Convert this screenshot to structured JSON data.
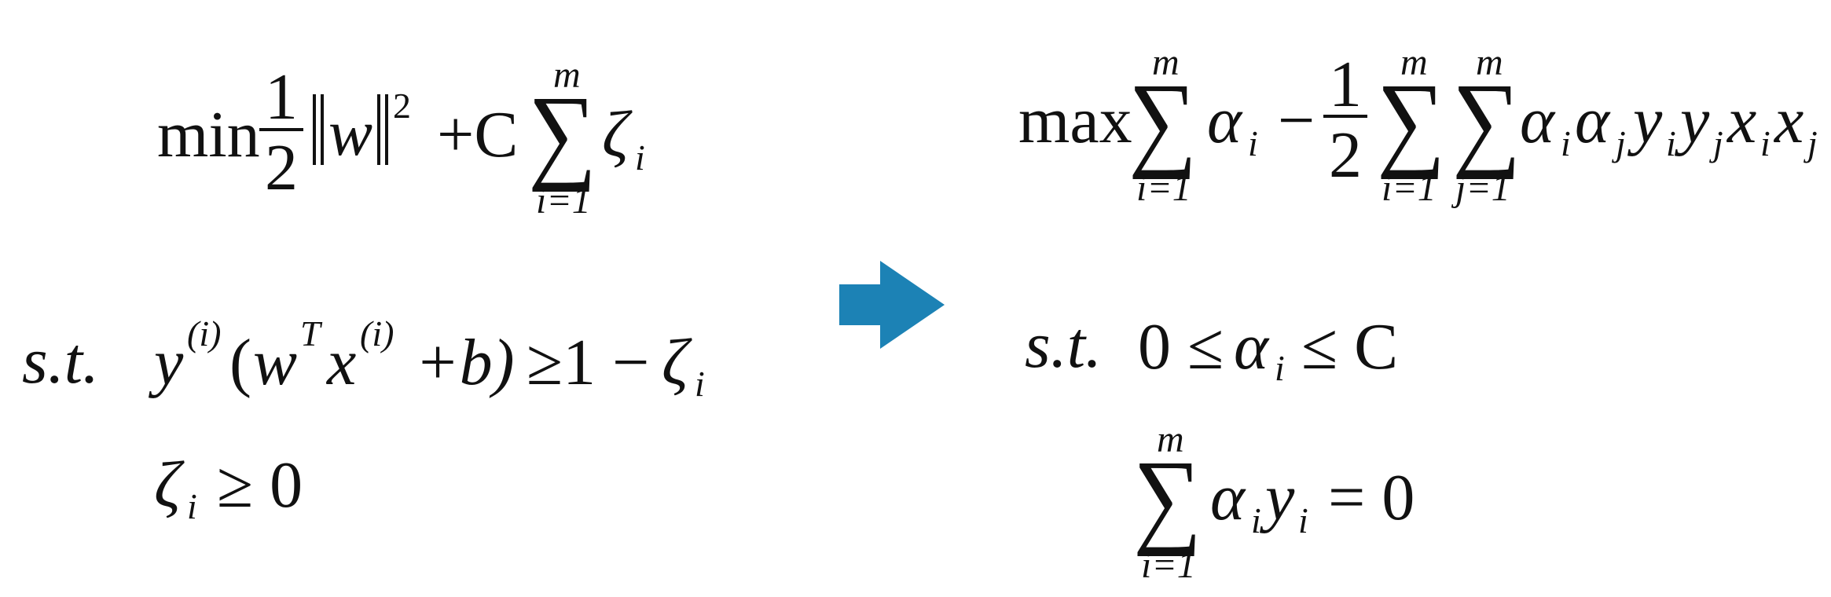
{
  "primal": {
    "objective": {
      "min": "min",
      "half_num": "1",
      "half_den": "2",
      "w": "w",
      "sq": "2",
      "plus_C": "+C",
      "sum_upper": "m",
      "sum_lower": "i=1",
      "zeta": "ζ",
      "zeta_sub": "i"
    },
    "st_label": "s.t.",
    "constraint1": {
      "y": "y",
      "y_sup": "(i)",
      "open": "(",
      "w": "w",
      "w_sup": "T",
      "x": "x",
      "x_sup": "(i)",
      "plus_b": "+b)",
      "geq_one": "≥1 −",
      "zeta": "ζ",
      "zeta_sub": "i"
    },
    "constraint2": {
      "zeta": "ζ",
      "zeta_sub": "i",
      "geq_zero": "≥ 0"
    }
  },
  "arrow": {
    "color": "#1c82b5",
    "icon": "right-arrow-icon"
  },
  "dual": {
    "objective": {
      "max": "max",
      "sum1_upper": "m",
      "sum1_lower": "i=1",
      "alpha": "α",
      "alpha_sub": "i",
      "minus": "−",
      "half_num": "1",
      "half_den": "2",
      "sum2_upper": "m",
      "sum2_lower": "i=1",
      "sum3_upper": "m",
      "sum3_lower": "j=1",
      "term_alpha_i": "α",
      "term_alpha_i_sub": "i",
      "term_alpha_j": "α",
      "term_alpha_j_sub": "j",
      "term_y_i": "y",
      "term_y_i_sub": "i",
      "term_y_j": "y",
      "term_y_j_sub": "j",
      "term_x_i": "x",
      "term_x_i_sub": "i",
      "term_x_j": "x",
      "term_x_j_sub": "j"
    },
    "st_label": "s.t.",
    "constraint1": {
      "lhs": "0 ≤",
      "alpha": "α",
      "alpha_sub": "i",
      "rhs": "≤ C"
    },
    "constraint2": {
      "sum_upper": "m",
      "sum_lower": "i=1",
      "alpha": "α",
      "alpha_sub": "i",
      "y": "y",
      "y_sub": "i",
      "eq_zero": "= 0"
    }
  }
}
